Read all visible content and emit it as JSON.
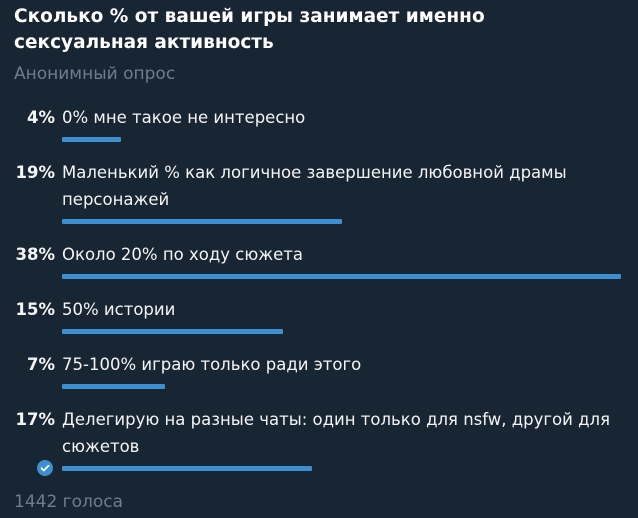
{
  "poll": {
    "question": "Сколько % от вашей игры занимает именно сексуальная активность",
    "type_label": "Анонимный опрос",
    "options": [
      {
        "percent": 4,
        "percent_label": "4%",
        "text": "0% мне такое не интересно",
        "chosen": false
      },
      {
        "percent": 19,
        "percent_label": "19%",
        "text": "Маленький % как логичное завершение любовной драмы персонажей",
        "chosen": false
      },
      {
        "percent": 38,
        "percent_label": "38%",
        "text": "Около 20% по ходу сюжета",
        "chosen": false
      },
      {
        "percent": 15,
        "percent_label": "15%",
        "text": "50% истории",
        "chosen": false
      },
      {
        "percent": 7,
        "percent_label": "7%",
        "text": "75-100% играю только ради этого",
        "chosen": false
      },
      {
        "percent": 17,
        "percent_label": "17%",
        "text": "Делегирую на разные чаты: один только для nsfw, другой для сюжетов",
        "chosen": true
      }
    ],
    "votes_label": "1442 голоса"
  },
  "colors": {
    "background": "#182533",
    "bar": "#3d8fd0",
    "muted": "#6d7f8f"
  },
  "icons": {
    "chosen": "check-circle-icon"
  }
}
